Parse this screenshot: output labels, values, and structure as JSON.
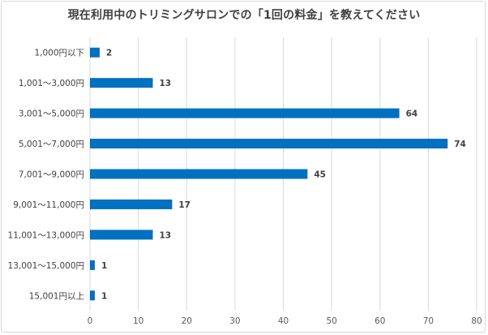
{
  "chart_data": {
    "type": "bar",
    "orientation": "horizontal",
    "title": "現在利用中のトリミングサロンでの「1回の料金」を教えてください",
    "categories": [
      "1,000円以下",
      "1,001〜3,000円",
      "3,001〜5,000円",
      "5,001〜7,000円",
      "7,001〜9,000円",
      "9,001〜11,000円",
      "11,001〜13,000円",
      "13,001〜15,000円",
      "15,001円以上"
    ],
    "values": [
      2,
      13,
      64,
      74,
      45,
      17,
      13,
      1,
      1
    ],
    "xlim": [
      0,
      80
    ],
    "xticks": [
      0,
      10,
      20,
      30,
      40,
      50,
      60,
      70,
      80
    ],
    "xlabel": "",
    "ylabel": "",
    "grid": "vertical",
    "bar_color": "#0070C0",
    "data_labels": true
  }
}
